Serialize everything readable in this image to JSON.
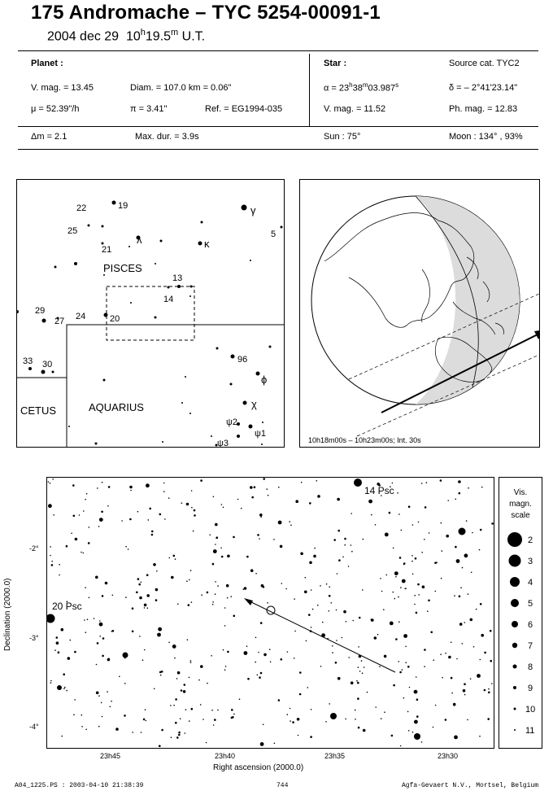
{
  "header": {
    "title": "175 Andromache  –  TYC 5254-00091-1",
    "date": "2004 dec 29",
    "time_h": "10",
    "time_h_sup": "h",
    "time_m": "19.5",
    "time_m_sup": "m",
    "time_zone": "U.T."
  },
  "planet": {
    "heading": "Planet :",
    "vmag": "V. mag. = 13.45",
    "diam": "Diam. = 107.0 km = 0.06\"",
    "mu": "μ =  52.39\"/h",
    "pi": "π =  3.41\"",
    "ref": "Ref. = EG1994-035"
  },
  "star": {
    "heading": "Star :",
    "source": "Source cat.  TYC2",
    "alpha_prefix": "α = 23",
    "alpha_h": "h",
    "alpha_mid": "38",
    "alpha_m": "m",
    "alpha_s": "03.987",
    "alpha_sup": "s",
    "delta": "δ = – 2°41'23.14\"",
    "vmag": "V. mag. = 11.52",
    "phmag": "Ph. mag. = 12.83"
  },
  "event": {
    "dm": "Δm = 2.1",
    "maxdur": "Max. dur. = 3.9s",
    "sun": "Sun :  75°",
    "moon": "Moon : 134° , 93%"
  },
  "finder": {
    "constellations": [
      "PISCES",
      "AQUARIUS",
      "CETUS"
    ],
    "labels": [
      "22",
      "19",
      "γ",
      "25",
      "λ",
      "κ",
      "5",
      "21",
      "13",
      "14",
      "29",
      "27",
      "24",
      "20",
      "33",
      "30",
      "96",
      "ϕ",
      "χ",
      "ψ2",
      "ψ1",
      "ψ3"
    ]
  },
  "globe": {
    "caption": "10h18m00s – 10h23m00s; Int. 30s"
  },
  "starchart": {
    "ylabel": "Declination (2000.0)",
    "xlabel": "Right ascension (2000.0)",
    "yticks": [
      "-2°",
      "-3°",
      "-4°"
    ],
    "xticks": [
      "23h45",
      "23h40",
      "23h35",
      "23h30"
    ],
    "star_labels": [
      "14 Psc",
      "20 Psc"
    ]
  },
  "scale": {
    "title_lines": [
      "Vis.",
      "magn.",
      "scale"
    ],
    "mags": [
      "2",
      "3",
      "4",
      "5",
      "6",
      "7",
      "8",
      "9",
      "10",
      "11"
    ]
  },
  "footer": {
    "left": "A04_1225.PS : 2003-04-10 21:38:39",
    "center": "744",
    "right": "Agfa-Gevaert N.V., Mortsel, Belgium"
  }
}
